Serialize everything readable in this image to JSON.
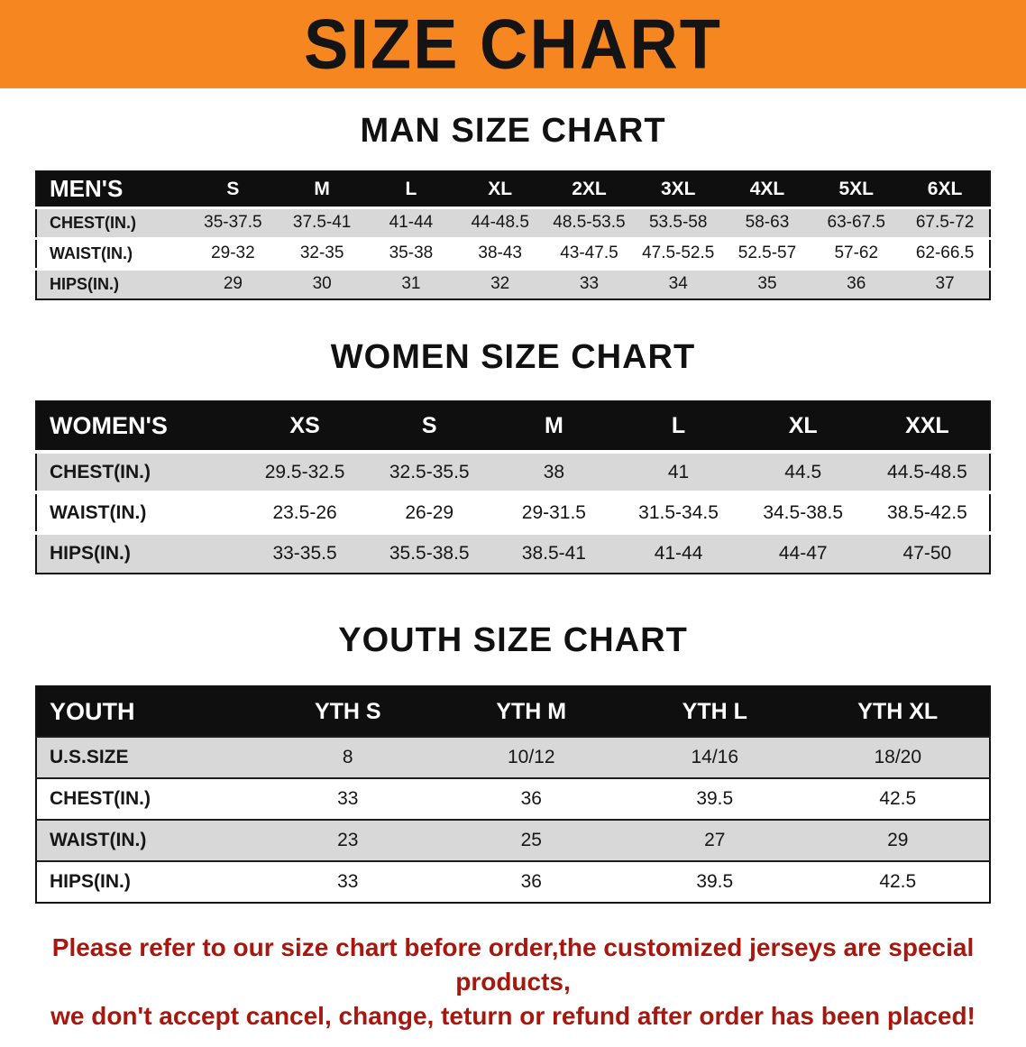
{
  "banner": {
    "title": "SIZE CHART",
    "bg_color": "#F6861F"
  },
  "headings": {
    "men": "MAN SIZE CHART",
    "women": "WOMEN SIZE CHART",
    "youth": "YOUTH SIZE CHART"
  },
  "tables": {
    "men": {
      "label": "MEN'S",
      "columns": [
        "S",
        "M",
        "L",
        "XL",
        "2XL",
        "3XL",
        "4XL",
        "5XL",
        "6XL"
      ],
      "rows": [
        {
          "label": "CHEST(IN.)",
          "values": [
            "35-37.5",
            "37.5-41",
            "41-44",
            "44-48.5",
            "48.5-53.5",
            "53.5-58",
            "58-63",
            "63-67.5",
            "67.5-72"
          ]
        },
        {
          "label": "WAIST(IN.)",
          "values": [
            "29-32",
            "32-35",
            "35-38",
            "38-43",
            "43-47.5",
            "47.5-52.5",
            "52.5-57",
            "57-62",
            "62-66.5"
          ]
        },
        {
          "label": "HIPS(IN.)",
          "values": [
            "29",
            "30",
            "31",
            "32",
            "33",
            "34",
            "35",
            "36",
            "37"
          ]
        }
      ]
    },
    "women": {
      "label": "WOMEN'S",
      "columns": [
        "XS",
        "S",
        "M",
        "L",
        "XL",
        "XXL"
      ],
      "rows": [
        {
          "label": "CHEST(IN.)",
          "values": [
            "29.5-32.5",
            "32.5-35.5",
            "38",
            "41",
            "44.5",
            "44.5-48.5"
          ]
        },
        {
          "label": "WAIST(IN.)",
          "values": [
            "23.5-26",
            "26-29",
            "29-31.5",
            "31.5-34.5",
            "34.5-38.5",
            "38.5-42.5"
          ]
        },
        {
          "label": "HIPS(IN.)",
          "values": [
            "33-35.5",
            "35.5-38.5",
            "38.5-41",
            "41-44",
            "44-47",
            "47-50"
          ]
        }
      ]
    },
    "youth": {
      "label": "YOUTH",
      "columns": [
        "YTH S",
        "YTH M",
        "YTH L",
        "YTH XL"
      ],
      "rows": [
        {
          "label": "U.S.SIZE",
          "values": [
            "8",
            "10/12",
            "14/16",
            "18/20"
          ]
        },
        {
          "label": "CHEST(IN.)",
          "values": [
            "33",
            "36",
            "39.5",
            "42.5"
          ]
        },
        {
          "label": "WAIST(IN.)",
          "values": [
            "23",
            "25",
            "27",
            "29"
          ]
        },
        {
          "label": "HIPS(IN.)",
          "values": [
            "33",
            "36",
            "39.5",
            "42.5"
          ]
        }
      ]
    }
  },
  "footer": {
    "line1": "Please refer to our size chart before order,the customized jerseys are special products,",
    "line2": "we don't accept cancel, change, teturn or refund after order has been placed!",
    "text_color": "#A8170E"
  }
}
